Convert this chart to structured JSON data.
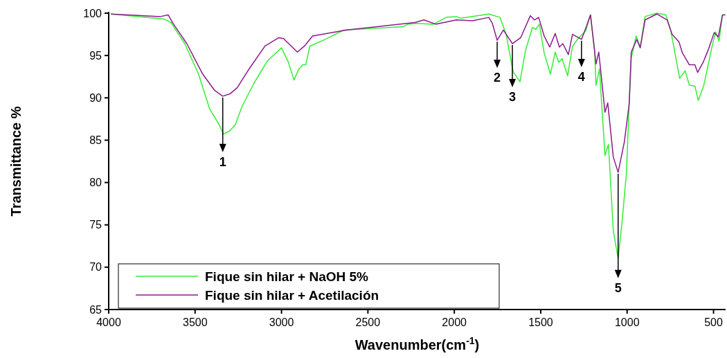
{
  "chart_data": {
    "type": "line",
    "xlabel": "Wavenumber(cm$^{-1}$)",
    "ylabel": "Transmittance %",
    "xlim": [
      4000,
      430
    ],
    "xticks": [
      4000,
      3500,
      3000,
      2500,
      2000,
      1500,
      1000,
      500
    ],
    "ylim": [
      65,
      100
    ],
    "yticks": [
      65,
      70,
      75,
      80,
      85,
      90,
      95,
      100
    ],
    "legend": "bottom left",
    "grid": false,
    "series": [
      {
        "name": "Fique sin hilar + NaOH 5%",
        "color": "#33ee33",
        "x": [
          3988,
          3680,
          3640,
          3560,
          3480,
          3416,
          3360,
          3336,
          3300,
          3268,
          3228,
          3160,
          3080,
          3000,
          2960,
          2928,
          2900,
          2876,
          2860,
          2836,
          2748,
          2640,
          2296,
          2268,
          2228,
          2120,
          2048,
          1988,
          1960,
          1800,
          1736,
          1700,
          1660,
          1620,
          1588,
          1548,
          1528,
          1508,
          1480,
          1444,
          1416,
          1396,
          1376,
          1344,
          1316,
          1280,
          1240,
          1212,
          1188,
          1180,
          1160,
          1128,
          1108,
          1080,
          1052,
          1028,
          1004,
          988,
          976,
          948,
          924,
          896,
          828,
          776,
          748,
          696,
          664,
          640,
          608,
          588,
          556,
          508,
          488,
          468,
          448,
          432
        ],
        "values": [
          99.9,
          99.3,
          98.9,
          96.4,
          92.8,
          88.7,
          86.8,
          85.7,
          86.1,
          86.8,
          89.0,
          91.7,
          94.4,
          95.9,
          94.2,
          92.1,
          93.4,
          93.9,
          93.9,
          96.1,
          96.9,
          98.0,
          98.4,
          98.7,
          98.8,
          98.7,
          99.5,
          99.6,
          99.4,
          99.9,
          99.5,
          97.5,
          93.1,
          91.9,
          95.6,
          98.3,
          98.1,
          98.7,
          95.3,
          92.8,
          95.4,
          94.2,
          94.6,
          92.6,
          96.1,
          97.1,
          97.9,
          99.8,
          95.6,
          91.5,
          93.4,
          83.2,
          84.5,
          74.3,
          71.0,
          75.6,
          81.1,
          89.3,
          94.7,
          97.3,
          96.0,
          99.6,
          100,
          99.8,
          98.0,
          92.3,
          93.2,
          91.5,
          91.4,
          89.7,
          91.5,
          96.1,
          97.8,
          96.7,
          99.8,
          99.8
        ]
      },
      {
        "name": "Fique sin hilar + Acetilación",
        "color": "#8b1a8b",
        "x": [
          3988,
          3700,
          3656,
          3628,
          3548,
          3456,
          3388,
          3340,
          3296,
          3256,
          3188,
          3096,
          3016,
          2988,
          2908,
          2868,
          2820,
          2628,
          2228,
          2176,
          2108,
          1988,
          1896,
          1800,
          1780,
          1752,
          1716,
          1664,
          1616,
          1560,
          1536,
          1512,
          1480,
          1448,
          1416,
          1392,
          1372,
          1340,
          1316,
          1264,
          1236,
          1212,
          1180,
          1164,
          1128,
          1112,
          1080,
          1052,
          1016,
          988,
          976,
          944,
          924,
          896,
          828,
          768,
          740,
          700,
          680,
          640,
          608,
          592,
          560,
          528,
          496,
          472,
          448,
          432
        ],
        "values": [
          99.9,
          99.6,
          99.8,
          98.8,
          96.4,
          92.8,
          90.9,
          90.2,
          90.5,
          91.2,
          93.4,
          96.1,
          97.1,
          97.0,
          95.4,
          96.1,
          97.3,
          98.0,
          98.9,
          99.2,
          98.7,
          99.2,
          99.1,
          99.5,
          98.8,
          96.8,
          98.0,
          96.4,
          97.1,
          99.7,
          99.2,
          99.5,
          97.3,
          96.0,
          97.6,
          96.0,
          96.4,
          95.1,
          97.5,
          96.9,
          98.4,
          99.8,
          94.0,
          95.4,
          88.3,
          89.4,
          83.0,
          81.2,
          84.8,
          89.3,
          95.4,
          96.9,
          95.9,
          99.2,
          99.9,
          99.2,
          97.5,
          96.6,
          95.3,
          93.9,
          93.9,
          93.0,
          94.2,
          95.8,
          97.7,
          97.2,
          99.8,
          99.8
        ]
      }
    ],
    "annotations": [
      {
        "text": "1",
        "x": 3340,
        "y": 90.2
      },
      {
        "text": "2",
        "x": 1752,
        "y": 96.8
      },
      {
        "text": "3",
        "x": 1664,
        "y": 96.4
      },
      {
        "text": "4",
        "x": 1264,
        "y": 96.9
      },
      {
        "text": "5",
        "x": 1052,
        "y": 81.2
      }
    ]
  }
}
